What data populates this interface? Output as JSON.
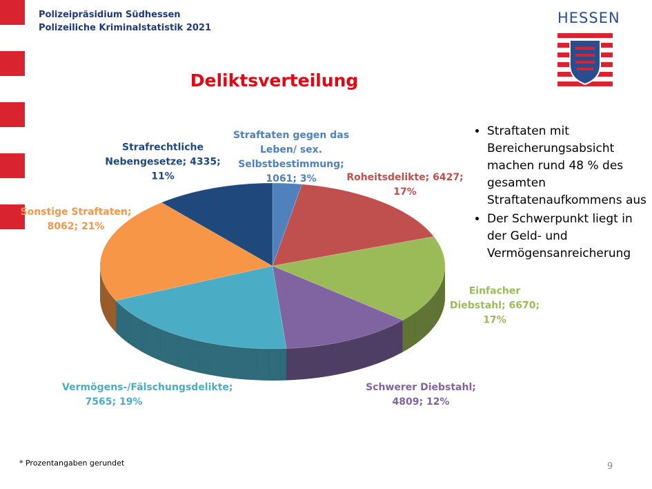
{
  "header": {
    "org": "Polizeipräsidium Südhessen",
    "subtitle": "Polizeiliche Kriminalstatistik 2021"
  },
  "logo": "HESSEN",
  "bullets": [
    "Straftaten mit Bereicherungsabsicht machen rund 48 % des gesamten Straftatenaufkommens aus",
    "Der Schwerpunkt liegt in der Geld- und Vermögensanreicherung"
  ],
  "footnote": "* Prozentangaben gerundet",
  "page_number": 9,
  "chart_data": {
    "type": "pie",
    "title": "Deliktsverteilung",
    "categories": [
      "Straftaten gegen das Leben/ sex. Selbstbestimmung;",
      "Roheitsdelikte;",
      "Einfacher Diebstahl;",
      "Schwerer Diebstahl;",
      "Vermögens-/Fälschungsdelikte;",
      "Sonstige Straftaten;",
      "Strafrechtliche Nebengesetze;"
    ],
    "values": [
      1061,
      6427,
      6670,
      4809,
      7565,
      8062,
      4335
    ],
    "value_labels": [
      "1061; 3%",
      "6427; 17%",
      "6670; 17%",
      "4809; 12%",
      "7565; 19%",
      "8062; 21%",
      "4335; 11%"
    ],
    "colors": [
      "#4f81bd",
      "#c0504d",
      "#9bbb59",
      "#8064a2",
      "#4bacc6",
      "#f79646",
      "#1f497d"
    ]
  }
}
